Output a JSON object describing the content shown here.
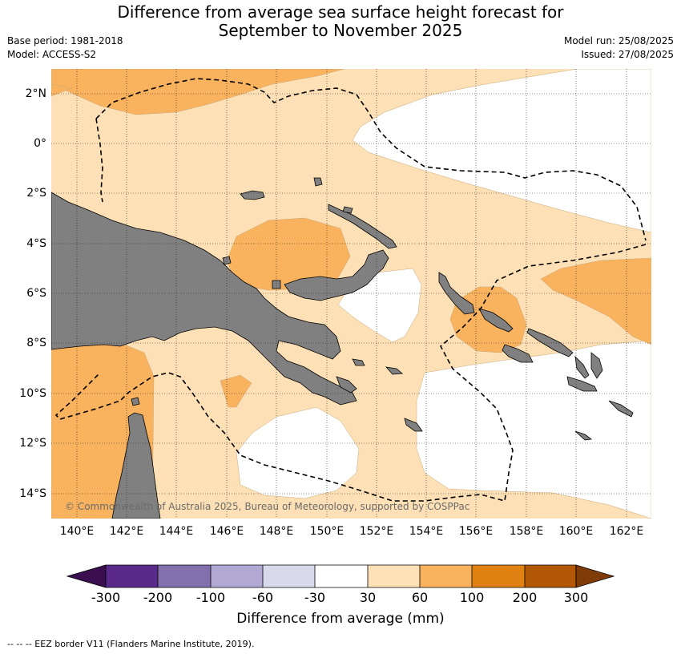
{
  "title_line1": "Difference from average sea surface height forecast for",
  "title_line2": "September to November 2025",
  "base_period": "Base period: 1981-2018",
  "model": "Model: ACCESS-S2",
  "model_run": "Model run: 25/08/2025",
  "issued": "Issued: 27/08/2025",
  "copyright": "© Commonwealth of Australia 2025, Bureau of Meteorology, supported by COSPPac",
  "lat_labels": [
    "2°N",
    "0°",
    "2°S",
    "4°S",
    "6°S",
    "8°S",
    "10°S",
    "12°S",
    "14°S"
  ],
  "lon_labels": [
    "140°E",
    "142°E",
    "144°E",
    "146°E",
    "148°E",
    "150°E",
    "152°E",
    "154°E",
    "156°E",
    "158°E",
    "160°E",
    "162°E"
  ],
  "legend": {
    "title": "Difference from average (mm)",
    "ticks": [
      "-300",
      "-200",
      "-100",
      "-60",
      "-30",
      "30",
      "60",
      "100",
      "200",
      "300"
    ],
    "colors": [
      "#3b0f4f",
      "#5a2a8a",
      "#8170ad",
      "#b1a8d3",
      "#d8daec",
      "#ffffff",
      "#fde0b5",
      "#f9b25e",
      "#e08113",
      "#b35806",
      "#7f3b08"
    ]
  },
  "footer": "--  --  -- EEZ border V11 (Flanders Marine Institute, 2019).",
  "colors": {
    "land": "#808080",
    "cat_30_60": "#fde0b5",
    "cat_60_100": "#f9b25e",
    "cat_neutral": "#ffffff"
  }
}
